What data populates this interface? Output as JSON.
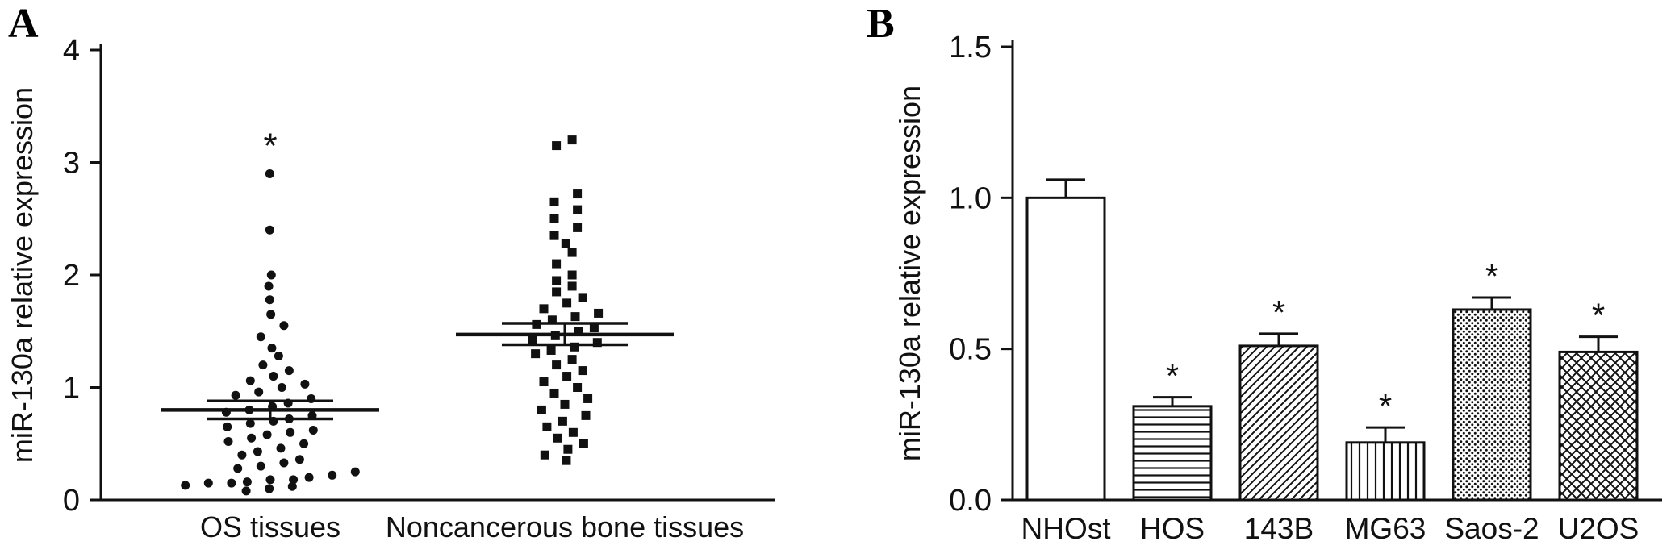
{
  "figure": {
    "background": "#ffffff",
    "ink_color": "#111111"
  },
  "panels": [
    {
      "letter": "A"
    },
    {
      "letter": "B"
    }
  ],
  "chart_data": [
    {
      "type": "scatter",
      "panel": "A",
      "title": "",
      "ylabel": "miR-130a relative expression",
      "ylim": [
        0,
        4
      ],
      "yticks": [
        0,
        1,
        2,
        3,
        4
      ],
      "ytick_labels": [
        "0",
        "1",
        "2",
        "3",
        "4"
      ],
      "categories": [
        "OS tissues",
        "Noncancerous bone tissues"
      ],
      "groups": [
        {
          "name": "OS tissues",
          "marker": "circle",
          "mean": 0.8,
          "sem_upper": 0.88,
          "sem_lower": 0.72,
          "significance": "*",
          "values": [
            0.08,
            0.1,
            0.12,
            0.13,
            0.15,
            0.15,
            0.16,
            0.18,
            0.18,
            0.2,
            0.22,
            0.25,
            0.28,
            0.3,
            0.33,
            0.36,
            0.4,
            0.43,
            0.46,
            0.5,
            0.52,
            0.55,
            0.58,
            0.6,
            0.62,
            0.65,
            0.68,
            0.7,
            0.72,
            0.75,
            0.78,
            0.8,
            0.83,
            0.86,
            0.9,
            0.93,
            0.96,
            1.0,
            1.03,
            1.06,
            1.1,
            1.15,
            1.2,
            1.28,
            1.35,
            1.45,
            1.55,
            1.65,
            1.78,
            1.9,
            2.0,
            2.4,
            2.9
          ]
        },
        {
          "name": "Noncancerous bone tissues",
          "marker": "square",
          "mean": 1.47,
          "sem_upper": 1.57,
          "sem_lower": 1.38,
          "significance": "",
          "values": [
            0.35,
            0.4,
            0.45,
            0.5,
            0.55,
            0.6,
            0.65,
            0.7,
            0.75,
            0.8,
            0.85,
            0.9,
            0.95,
            1.0,
            1.05,
            1.1,
            1.15,
            1.2,
            1.25,
            1.3,
            1.33,
            1.36,
            1.4,
            1.43,
            1.46,
            1.5,
            1.53,
            1.56,
            1.6,
            1.63,
            1.66,
            1.7,
            1.75,
            1.8,
            1.85,
            1.9,
            1.95,
            2.0,
            2.1,
            2.2,
            2.28,
            2.35,
            2.42,
            2.5,
            2.58,
            2.65,
            2.72,
            3.15,
            3.2
          ]
        }
      ]
    },
    {
      "type": "bar",
      "panel": "B",
      "title": "",
      "ylabel": "miR-130a relative expression",
      "ylim": [
        0,
        1.5
      ],
      "yticks": [
        0,
        0.5,
        1.0,
        1.5
      ],
      "ytick_labels": [
        "0.0",
        "0.5",
        "1.0",
        "1.5"
      ],
      "categories": [
        "NHOst",
        "HOS",
        "143B",
        "MG63",
        "Saos-2",
        "U2OS"
      ],
      "values": [
        1.0,
        0.31,
        0.51,
        0.19,
        0.63,
        0.49
      ],
      "errors": [
        0.06,
        0.03,
        0.04,
        0.05,
        0.04,
        0.05
      ],
      "significance": [
        "",
        "*",
        "*",
        "*",
        "*",
        "*"
      ],
      "patterns": [
        "open",
        "horizontal-lines",
        "diagonal-hatch",
        "vertical-lines",
        "dots",
        "crosshatch"
      ],
      "bar_fill": "#ffffff",
      "edge_color": "#111111"
    }
  ]
}
